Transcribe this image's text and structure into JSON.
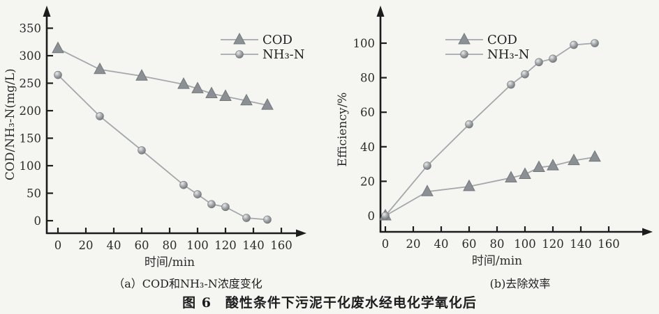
{
  "page": {
    "background": "#f5f5f2"
  },
  "colors": {
    "marker": "#8b9095",
    "marker_edge": "#74787c",
    "sphere_light": "#e9eaea",
    "sphere_mid": "#9da1a4",
    "sphere_dark": "#55585b",
    "line": "#a4a8ab",
    "axis": "#1c1c1c",
    "text": "#2b2b2b"
  },
  "figure_caption": "图 6　酸性条件下污泥干化废水经电化学氧化后",
  "chart_data": [
    {
      "panel": "a",
      "type": "line",
      "caption": "（a）COD和NH₃-N浓度变化",
      "xlabel": "时间/min",
      "ylabel": "COD/NH₃-N(mg/L)",
      "x": [
        0,
        30,
        60,
        90,
        100,
        110,
        120,
        135,
        150
      ],
      "series": [
        {
          "name": "COD",
          "marker": "triangle",
          "values": [
            313,
            275,
            263,
            248,
            240,
            231,
            226,
            218,
            210
          ]
        },
        {
          "name": "NH₃-N",
          "marker": "circle",
          "values": [
            265,
            190,
            128,
            65,
            48,
            30,
            25,
            5,
            2
          ]
        }
      ],
      "xlim": [
        0,
        160
      ],
      "ylim": [
        0,
        350
      ],
      "xticks": [
        0,
        20,
        40,
        60,
        80,
        100,
        120,
        140,
        160
      ],
      "yticks": [
        0,
        50,
        100,
        150,
        200,
        250,
        300,
        350
      ],
      "legend": [
        "COD",
        "NH₃-N"
      ],
      "legend_position": "upper right inside",
      "grid": false
    },
    {
      "panel": "b",
      "type": "line",
      "caption": "(b)去除效率",
      "xlabel": "时间/min",
      "ylabel": "Efficiency/%",
      "x": [
        0,
        30,
        60,
        90,
        100,
        110,
        120,
        135,
        150
      ],
      "series": [
        {
          "name": "COD",
          "marker": "triangle",
          "values": [
            0,
            14,
            17,
            22,
            24,
            28,
            29,
            32,
            34
          ]
        },
        {
          "name": "NH₃-N",
          "marker": "circle",
          "values": [
            0,
            29,
            53,
            76,
            82,
            89,
            91,
            99,
            100
          ]
        }
      ],
      "xlim": [
        0,
        160
      ],
      "ylim": [
        0,
        100
      ],
      "xticks": [
        0,
        20,
        40,
        60,
        80,
        100,
        120,
        140,
        160
      ],
      "yticks": [
        0,
        20,
        40,
        60,
        80,
        100
      ],
      "legend": [
        "COD",
        "NH₃-N"
      ],
      "legend_position": "upper center-left inside",
      "grid": false
    }
  ]
}
